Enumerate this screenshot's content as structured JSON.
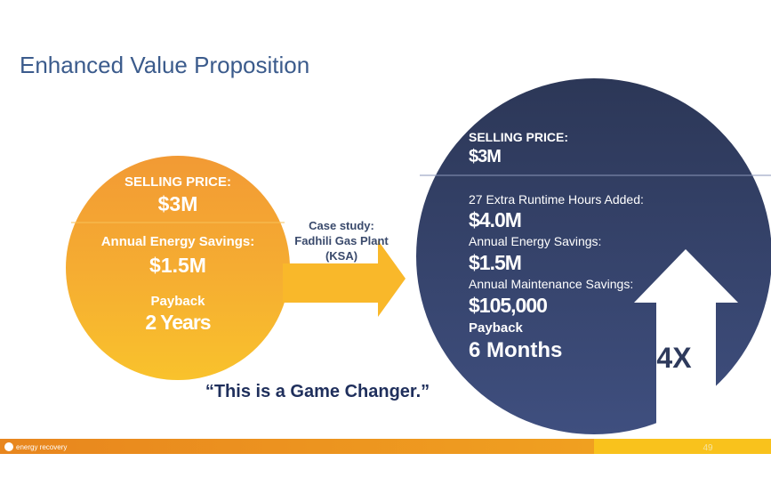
{
  "title": "Enhanced Value Proposition",
  "left_circle": {
    "selling_price_label": "SELLING PRICE:",
    "selling_price": "$3M",
    "energy_savings_label": "Annual Energy Savings:",
    "energy_savings": "$1.5M",
    "payback_label": "Payback",
    "payback": "2 Years"
  },
  "case_study": [
    "Case study:",
    "Fadhili Gas Plant",
    "(KSA)"
  ],
  "right_circle": {
    "selling_price_label": "SELLING PRICE:",
    "selling_price": "$3M",
    "items": [
      {
        "label": "27 Extra Runtime Hours Added:",
        "value": "$4.0M"
      },
      {
        "label": "Annual Energy Savings:",
        "value": "$1.5M"
      },
      {
        "label": "Annual Maintenance Savings:",
        "value": "$105,000"
      },
      {
        "label": "Payback",
        "value": "6 Months"
      }
    ]
  },
  "multiplier": "4X",
  "quote": "“This is a Game Changer.”",
  "footer": {
    "logo": "energy recovery",
    "page_number": "49"
  }
}
